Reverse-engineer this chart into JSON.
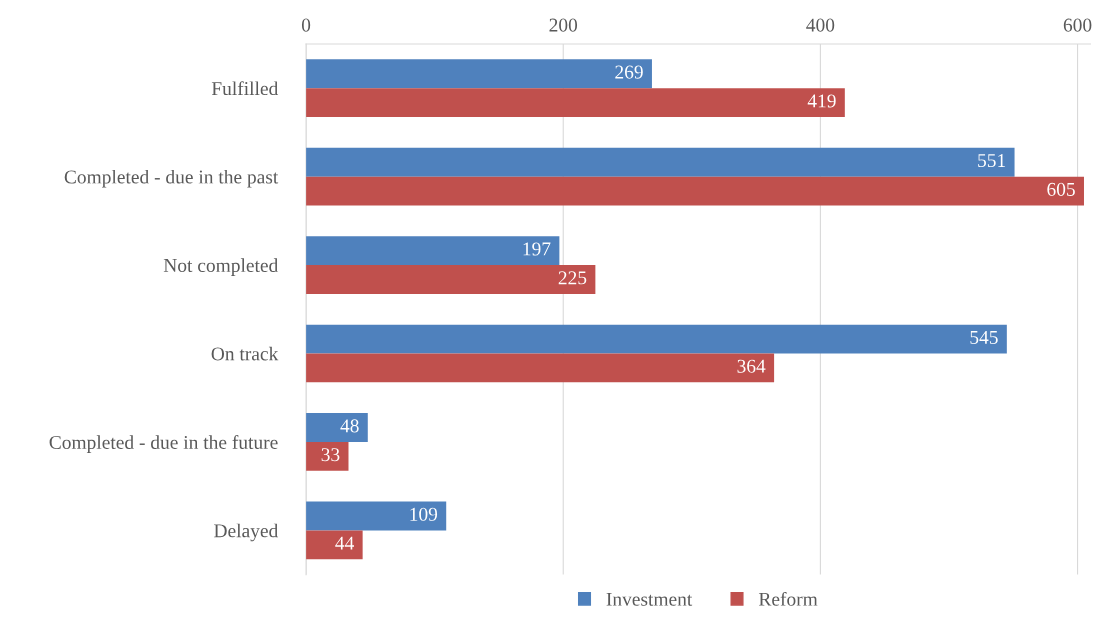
{
  "chart_data": {
    "type": "bar",
    "orientation": "horizontal",
    "categories": [
      "Fulfilled",
      "Completed - due in the past",
      "Not completed",
      "On track",
      "Completed - due in the future",
      "Delayed"
    ],
    "series": [
      {
        "name": "Investment",
        "color": "#4f81bd",
        "values": [
          269,
          551,
          197,
          545,
          48,
          109
        ]
      },
      {
        "name": "Reform",
        "color": "#c0504d",
        "values": [
          419,
          605,
          225,
          364,
          33,
          44
        ]
      }
    ],
    "xlim": [
      0,
      610
    ],
    "xticks": [
      0,
      200,
      400,
      600
    ],
    "grid": "x",
    "legend": "bottom",
    "data_labels": true
  }
}
